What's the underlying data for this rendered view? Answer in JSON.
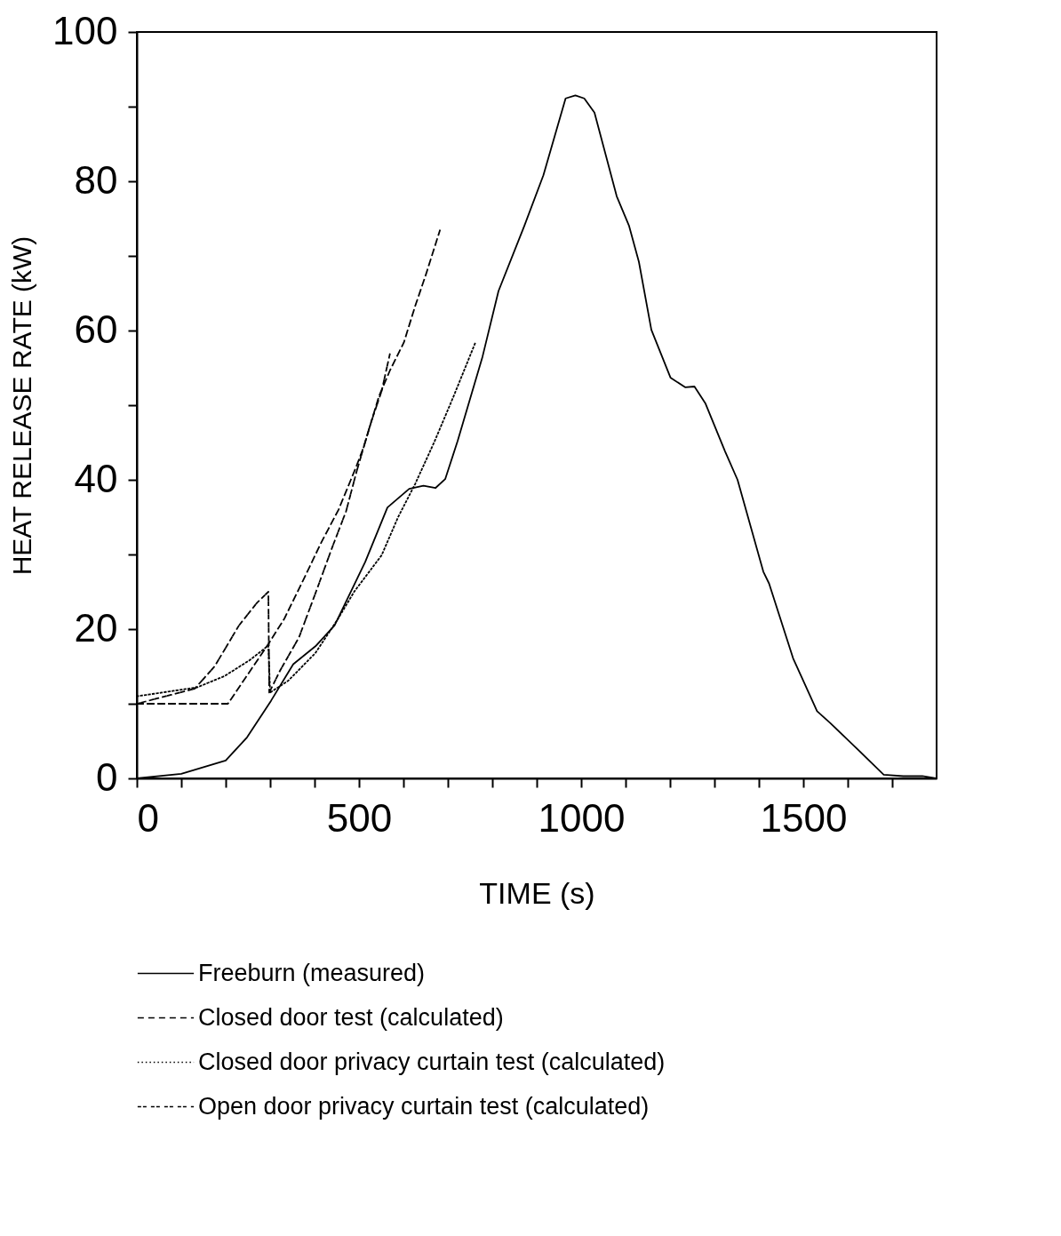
{
  "chart_data": {
    "type": "line",
    "xlabel": "TIME (s)",
    "ylabel": "HEAT RELEASE RATE (kW)",
    "xlim": [
      0,
      1800
    ],
    "ylim": [
      0,
      100
    ],
    "xticks": [
      0,
      {
        "value": 100,
        "label": null
      },
      {
        "value": 200,
        "label": null
      },
      {
        "value": 300,
        "label": null
      },
      {
        "value": 400,
        "label": null
      },
      500,
      {
        "value": 600,
        "label": null
      },
      {
        "value": 700,
        "label": null
      },
      {
        "value": 800,
        "label": null
      },
      {
        "value": 900,
        "label": null
      },
      1000,
      {
        "value": 1100,
        "label": null
      },
      {
        "value": 1200,
        "label": null
      },
      {
        "value": 1300,
        "label": null
      },
      {
        "value": 1400,
        "label": null
      },
      1500,
      {
        "value": 1600,
        "label": null
      },
      {
        "value": 1700,
        "label": null
      }
    ],
    "yticks": [
      0,
      {
        "value": 10,
        "label": null
      },
      20,
      {
        "value": 30,
        "label": null
      },
      40,
      {
        "value": 50,
        "label": null
      },
      60,
      {
        "value": 70,
        "label": null
      },
      80,
      {
        "value": 90,
        "label": null
      },
      100
    ],
    "grid": false,
    "legend": "bottom",
    "marker": "none",
    "series": [
      {
        "name": "Freeburn (measured)",
        "color": "#000000",
        "line_style": "solid",
        "x": [
          0,
          100,
          200,
          248,
          302,
          352,
          402,
          445,
          514,
          564,
          613,
          645,
          672,
          694,
          722,
          778,
          814,
          872,
          915,
          965,
          987,
          1007,
          1030,
          1080,
          1108,
          1130,
          1158,
          1201,
          1234,
          1255,
          1280,
          1324,
          1352,
          1410,
          1423,
          1477,
          1531,
          1561,
          1624,
          1681,
          1725,
          1768,
          1800
        ],
        "values": [
          0,
          0.6,
          2.4,
          5.5,
          10.4,
          15.3,
          17.7,
          20.5,
          29,
          36.3,
          38.8,
          39.2,
          38.9,
          40.1,
          45.2,
          56.5,
          65.3,
          74,
          80.8,
          91.1,
          91.5,
          91.1,
          89.2,
          78,
          74,
          69.2,
          60.1,
          53.7,
          52.4,
          52.5,
          50.2,
          43.8,
          40,
          27.7,
          26.1,
          16.1,
          9,
          7.4,
          3.8,
          0.5,
          0.3,
          0.3,
          0
        ]
      },
      {
        "name": "Closed door test (calculated)",
        "color": "#000000",
        "line_style": "dashed",
        "x": [
          0,
          205,
          296,
          332,
          374,
          415,
          454,
          492,
          510,
          545,
          570,
          601,
          626,
          650,
          682
        ],
        "values": [
          10,
          10,
          18,
          21.4,
          26.5,
          31.6,
          36,
          41.5,
          44.3,
          51.2,
          54.7,
          58.4,
          63.2,
          67.4,
          73.4
        ]
      },
      {
        "name": "Closed door privacy curtain test (calculated)",
        "color": "#000000",
        "line_style": "dotted",
        "x": [
          0,
          136,
          197,
          253,
          296,
          300,
          341,
          402,
          452,
          489,
          551,
          588,
          626,
          669,
          713,
          762
        ],
        "values": [
          11,
          12.2,
          13.7,
          15.8,
          17.8,
          11.5,
          13.1,
          16.8,
          21.3,
          25,
          29.9,
          35,
          39.4,
          45,
          51.2,
          58.4
        ]
      },
      {
        "name": "Open door privacy curtain test (calculated)",
        "color": "#000000",
        "line_style": "dashed",
        "x": [
          0,
          130,
          175,
          230,
          270,
          296,
          298,
          322,
          365,
          402,
          440,
          471,
          495,
          527,
          551,
          570
        ],
        "values": [
          10,
          12,
          15,
          20.5,
          23.5,
          25,
          11.5,
          14.4,
          18.9,
          24.8,
          31,
          35.8,
          41.2,
          47.7,
          51.9,
          57
        ]
      }
    ]
  }
}
